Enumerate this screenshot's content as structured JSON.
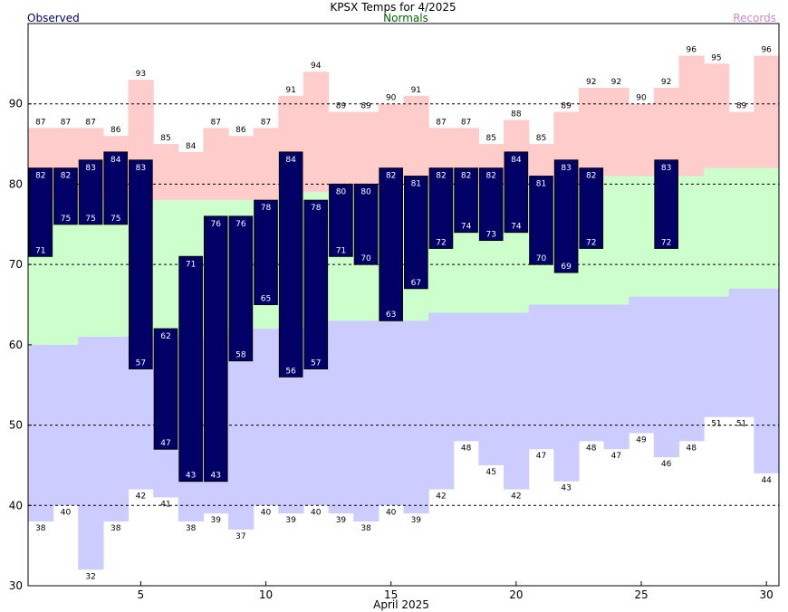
{
  "chart_data": {
    "type": "bar",
    "title": "KPSX Temps for 4/2025",
    "xlabel": "April 2025",
    "ylabel": "",
    "ylim": [
      30,
      100
    ],
    "xlim": [
      0.5,
      30.5
    ],
    "yticks": [
      30,
      40,
      50,
      60,
      70,
      80,
      90
    ],
    "xticks": [
      5,
      10,
      15,
      20,
      25,
      30
    ],
    "grid": "horizontal dashed at 40, 50, 70, 80, 90",
    "legend": [
      {
        "name": "Observed",
        "color": "#000066",
        "position": "top-left"
      },
      {
        "name": "Normals",
        "color": "#006600",
        "position": "top-center"
      },
      {
        "name": "Records",
        "color": "#cc88cc",
        "position": "top-right"
      }
    ],
    "days": [
      1,
      2,
      3,
      4,
      5,
      6,
      7,
      8,
      9,
      10,
      11,
      12,
      13,
      14,
      15,
      16,
      17,
      18,
      19,
      20,
      21,
      22,
      23,
      24,
      25,
      26,
      27,
      28,
      29,
      30
    ],
    "series": [
      {
        "name": "Observed",
        "color": "#000066",
        "high": [
          82,
          82,
          83,
          84,
          83,
          62,
          71,
          76,
          76,
          78,
          84,
          78,
          80,
          80,
          82,
          81,
          82,
          82,
          82,
          84,
          81,
          83,
          82,
          null,
          null,
          83,
          null,
          null,
          null,
          null
        ],
        "low": [
          71,
          75,
          75,
          75,
          57,
          47,
          43,
          43,
          58,
          65,
          56,
          57,
          71,
          70,
          63,
          67,
          72,
          74,
          73,
          74,
          70,
          69,
          72,
          null,
          null,
          72,
          null,
          null,
          null,
          null
        ]
      },
      {
        "name": "Normals",
        "color": "#ccffcc",
        "high": [
          78,
          78,
          78,
          78,
          78,
          78,
          78,
          78,
          78,
          78,
          79,
          79,
          79,
          79,
          79,
          80,
          80,
          80,
          80,
          80,
          80,
          80,
          80,
          81,
          81,
          81,
          81,
          82,
          82,
          82
        ],
        "low": [
          60,
          60,
          61,
          61,
          61,
          61,
          61,
          61,
          62,
          62,
          62,
          62,
          63,
          63,
          63,
          63,
          64,
          64,
          64,
          64,
          65,
          65,
          65,
          65,
          66,
          66,
          66,
          66,
          67,
          67
        ]
      },
      {
        "name": "Records",
        "color": "#ffcccc",
        "high": [
          87,
          87,
          87,
          86,
          93,
          85,
          84,
          87,
          86,
          87,
          91,
          94,
          89,
          89,
          90,
          91,
          87,
          87,
          85,
          88,
          85,
          89,
          92,
          92,
          90,
          92,
          96,
          95,
          89,
          96
        ],
        "low": [
          38,
          40,
          32,
          38,
          42,
          41,
          38,
          39,
          37,
          40,
          39,
          40,
          39,
          38,
          40,
          39,
          42,
          48,
          45,
          42,
          47,
          43,
          48,
          47,
          49,
          46,
          48,
          51,
          51,
          44
        ]
      }
    ],
    "record_low_fill_color": "#ccccff"
  }
}
